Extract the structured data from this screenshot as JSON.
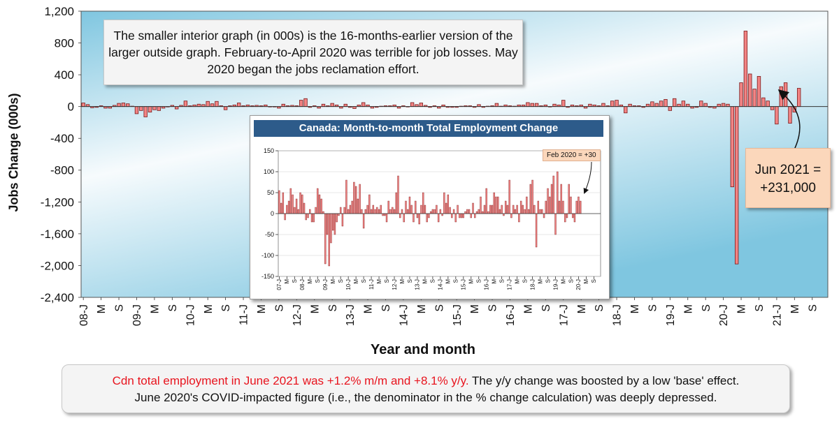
{
  "chart_data": [
    {
      "type": "bar",
      "id": "outer",
      "ylabel": "Jobs Change (000s)",
      "xlabel": "Year and month",
      "ylim": [
        -2400,
        1200
      ],
      "yticks": [
        "1,200",
        "800",
        "400",
        "0",
        "-400",
        "-800",
        "-1,200",
        "-1,600",
        "-2,000",
        "-2,400"
      ],
      "ytick_values": [
        1200,
        800,
        400,
        0,
        -400,
        -800,
        -1200,
        -1600,
        -2000,
        -2400
      ],
      "xtick_labels": [
        "08-J",
        "M",
        "S",
        "09-J",
        "M",
        "S",
        "10-J",
        "M",
        "S",
        "11-J",
        "M",
        "S",
        "12-J",
        "M",
        "S",
        "13-J",
        "M",
        "S",
        "14-J",
        "M",
        "S",
        "15-J",
        "M",
        "S",
        "16-J",
        "M",
        "S",
        "17-J",
        "M",
        "S",
        "18-J",
        "M",
        "S",
        "19-J",
        "M",
        "S",
        "20-J",
        "M",
        "S",
        "21-J",
        "M",
        "S"
      ],
      "start": "2008-01",
      "values": [
        45,
        25,
        -15,
        -10,
        10,
        -20,
        -20,
        15,
        40,
        45,
        35,
        5,
        -90,
        -50,
        -130,
        -70,
        -40,
        -50,
        -20,
        -5,
        15,
        -30,
        15,
        70,
        10,
        20,
        30,
        25,
        65,
        35,
        65,
        10,
        -40,
        10,
        20,
        45,
        10,
        20,
        10,
        15,
        10,
        20,
        -5,
        -5,
        -20,
        30,
        10,
        15,
        10,
        80,
        100,
        -10,
        10,
        -20,
        30,
        10,
        40,
        20,
        -20,
        30,
        -10,
        -25,
        20,
        50,
        20,
        -20,
        -10,
        5,
        10,
        10,
        20,
        -20,
        10,
        -5,
        50,
        25,
        45,
        15,
        -10,
        10,
        -20,
        20,
        -10,
        -10,
        -10,
        5,
        10,
        10,
        -10,
        25,
        -10,
        5,
        10,
        40,
        5,
        20,
        10,
        5,
        20,
        20,
        50,
        40,
        40,
        10,
        20,
        -5,
        30,
        20,
        80,
        -10,
        20,
        10,
        20,
        -20,
        30,
        20,
        10,
        40,
        10,
        70,
        80,
        20,
        -80,
        30,
        10,
        10,
        -10,
        30,
        60,
        40,
        70,
        90,
        -50,
        100,
        30,
        70,
        30,
        -20,
        -10,
        70,
        40,
        -10,
        -20,
        30,
        40,
        30,
        -1010,
        -1980,
        300,
        950,
        410,
        220,
        380,
        110,
        70,
        -40,
        -220,
        250,
        300,
        -210,
        -70,
        230
      ],
      "highlight": {
        "label_line1": "Jun 2021 =",
        "label_line2": "+231,000",
        "value": 231
      },
      "annotation": "The smaller interior graph (in 000s) is the 16-months-earlier version of the larger outside graph. February-to-April 2020 was terrible for job losses. May 2020 began the jobs reclamation effort."
    },
    {
      "type": "bar",
      "id": "inset",
      "title": "Canada: Month-to-month Total Employment Change",
      "ylim": [
        -150,
        150
      ],
      "yticks": [
        "150",
        "100",
        "50",
        "0",
        "-50",
        "-100",
        "-150"
      ],
      "ytick_values": [
        150,
        100,
        50,
        0,
        -50,
        -100,
        -150
      ],
      "xtick_labels": [
        "07-J",
        "M",
        "S",
        "08-J",
        "M",
        "S",
        "09-J",
        "M",
        "S",
        "10-J",
        "M",
        "S",
        "11-J",
        "M",
        "S",
        "12-J",
        "M",
        "S",
        "13-J",
        "M",
        "S",
        "14-J",
        "M",
        "S",
        "15-J",
        "M",
        "S",
        "16-J",
        "M",
        "S",
        "17-J",
        "M",
        "S",
        "18-J",
        "M",
        "S",
        "19-J",
        "M",
        "S",
        "20-J",
        "M",
        "S"
      ],
      "start": "2007-01",
      "values": [
        55,
        25,
        50,
        -15,
        20,
        30,
        60,
        45,
        15,
        35,
        10,
        50,
        45,
        25,
        -15,
        -10,
        10,
        -20,
        -20,
        15,
        60,
        45,
        35,
        5,
        -120,
        -50,
        -125,
        -70,
        -40,
        -50,
        -20,
        -5,
        15,
        -30,
        15,
        80,
        10,
        20,
        30,
        75,
        65,
        35,
        70,
        10,
        -35,
        10,
        20,
        45,
        10,
        20,
        10,
        15,
        10,
        20,
        -5,
        -5,
        -20,
        30,
        10,
        15,
        10,
        50,
        90,
        -10,
        10,
        -20,
        30,
        10,
        40,
        20,
        -20,
        30,
        -10,
        -25,
        20,
        50,
        20,
        -20,
        -10,
        5,
        10,
        10,
        20,
        -20,
        10,
        -5,
        50,
        25,
        45,
        15,
        -10,
        10,
        -20,
        20,
        -10,
        -10,
        -10,
        5,
        10,
        10,
        -10,
        25,
        -10,
        5,
        10,
        40,
        5,
        20,
        60,
        5,
        20,
        20,
        50,
        40,
        40,
        10,
        20,
        -5,
        30,
        20,
        80,
        -10,
        20,
        10,
        20,
        -20,
        30,
        20,
        10,
        40,
        10,
        70,
        80,
        20,
        -80,
        30,
        10,
        10,
        -10,
        30,
        60,
        40,
        70,
        90,
        -50,
        100,
        30,
        70,
        30,
        -20,
        -10,
        70,
        40,
        -10,
        -20,
        30,
        40,
        30
      ],
      "callout": "Feb 2020 = +30"
    }
  ],
  "footer": {
    "red_text": "Cdn total employment in June 2021 was +1.2% m/m and +8.1% y/y.",
    "rest_line1": " The y/y change was boosted by a low 'base' effect.",
    "line2": "June 2020's COVID-impacted figure (i.e., the denominator in the % change calculation) was deeply depressed."
  },
  "colors": {
    "bar_fill": "#f28484",
    "bar_stroke": "#7a1a1a",
    "plot_bg_light": "#f7fbfd",
    "plot_bg_blue": "#7fc6e0",
    "inset_title_bg": "#2d5b8a"
  }
}
